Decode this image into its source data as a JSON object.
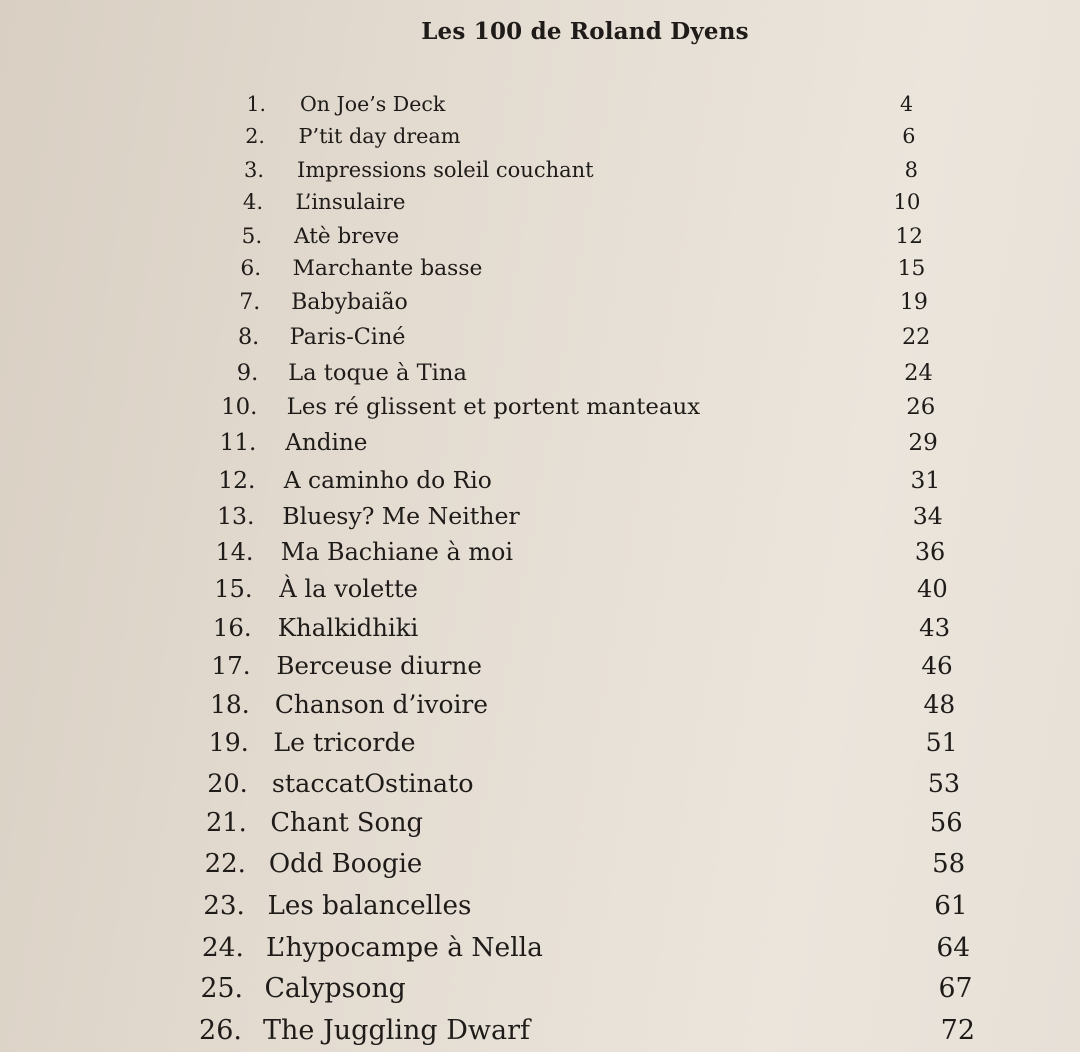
{
  "title": "Les 100 de Roland Dyens",
  "entries": [
    {
      "number": "1.",
      "title": "On Joe’s Deck",
      "page": "4"
    },
    {
      "number": "2.",
      "title": "P’tit day dream",
      "page": "6"
    },
    {
      "number": "3.",
      "title": "Impressions soleil couchant",
      "page": "8"
    },
    {
      "number": "4.",
      "title": "L’insulaire",
      "page": "10"
    },
    {
      "number": "5.",
      "title": "Atè breve",
      "page": "12"
    },
    {
      "number": "6.",
      "title": "Marchante basse",
      "page": "15"
    },
    {
      "number": "7.",
      "title": "Babybaião",
      "page": "19"
    },
    {
      "number": "8.",
      "title": "Paris-Ciné",
      "page": "22"
    },
    {
      "number": "9.",
      "title": "La toque à Tina",
      "page": "24"
    },
    {
      "number": "10.",
      "title": "Les ré glissent et portent manteaux",
      "page": "26"
    },
    {
      "number": "11.",
      "title": "Andine",
      "page": "29"
    },
    {
      "number": "12.",
      "title": "A caminho do Rio",
      "page": "31"
    },
    {
      "number": "13.",
      "title": "Bluesy? Me Neither",
      "page": "34"
    },
    {
      "number": "14.",
      "title": "Ma Bachiane à moi",
      "page": "36"
    },
    {
      "number": "15.",
      "title": "À la volette",
      "page": "40"
    },
    {
      "number": "16.",
      "title": "Khalkidhiki",
      "page": "43"
    },
    {
      "number": "17.",
      "title": "Berceuse diurne",
      "page": "46"
    },
    {
      "number": "18.",
      "title": "Chanson d’ivoire",
      "page": "48"
    },
    {
      "number": "19.",
      "title": "Le tricorde",
      "page": "51"
    },
    {
      "number": "20.",
      "title": "staccatOstinato",
      "page": "53"
    },
    {
      "number": "21.",
      "title": "Chant Song",
      "page": "56"
    },
    {
      "number": "22.",
      "title": "Odd Boogie",
      "page": "58"
    },
    {
      "number": "23.",
      "title": "Les balancelles",
      "page": "61"
    },
    {
      "number": "24.",
      "title": "L’hypocampe à Nella",
      "page": "64"
    },
    {
      "number": "25.",
      "title": "Calypsong",
      "page": "67"
    },
    {
      "number": "26.",
      "title": "The Juggling Dwarf",
      "page": "72"
    }
  ]
}
